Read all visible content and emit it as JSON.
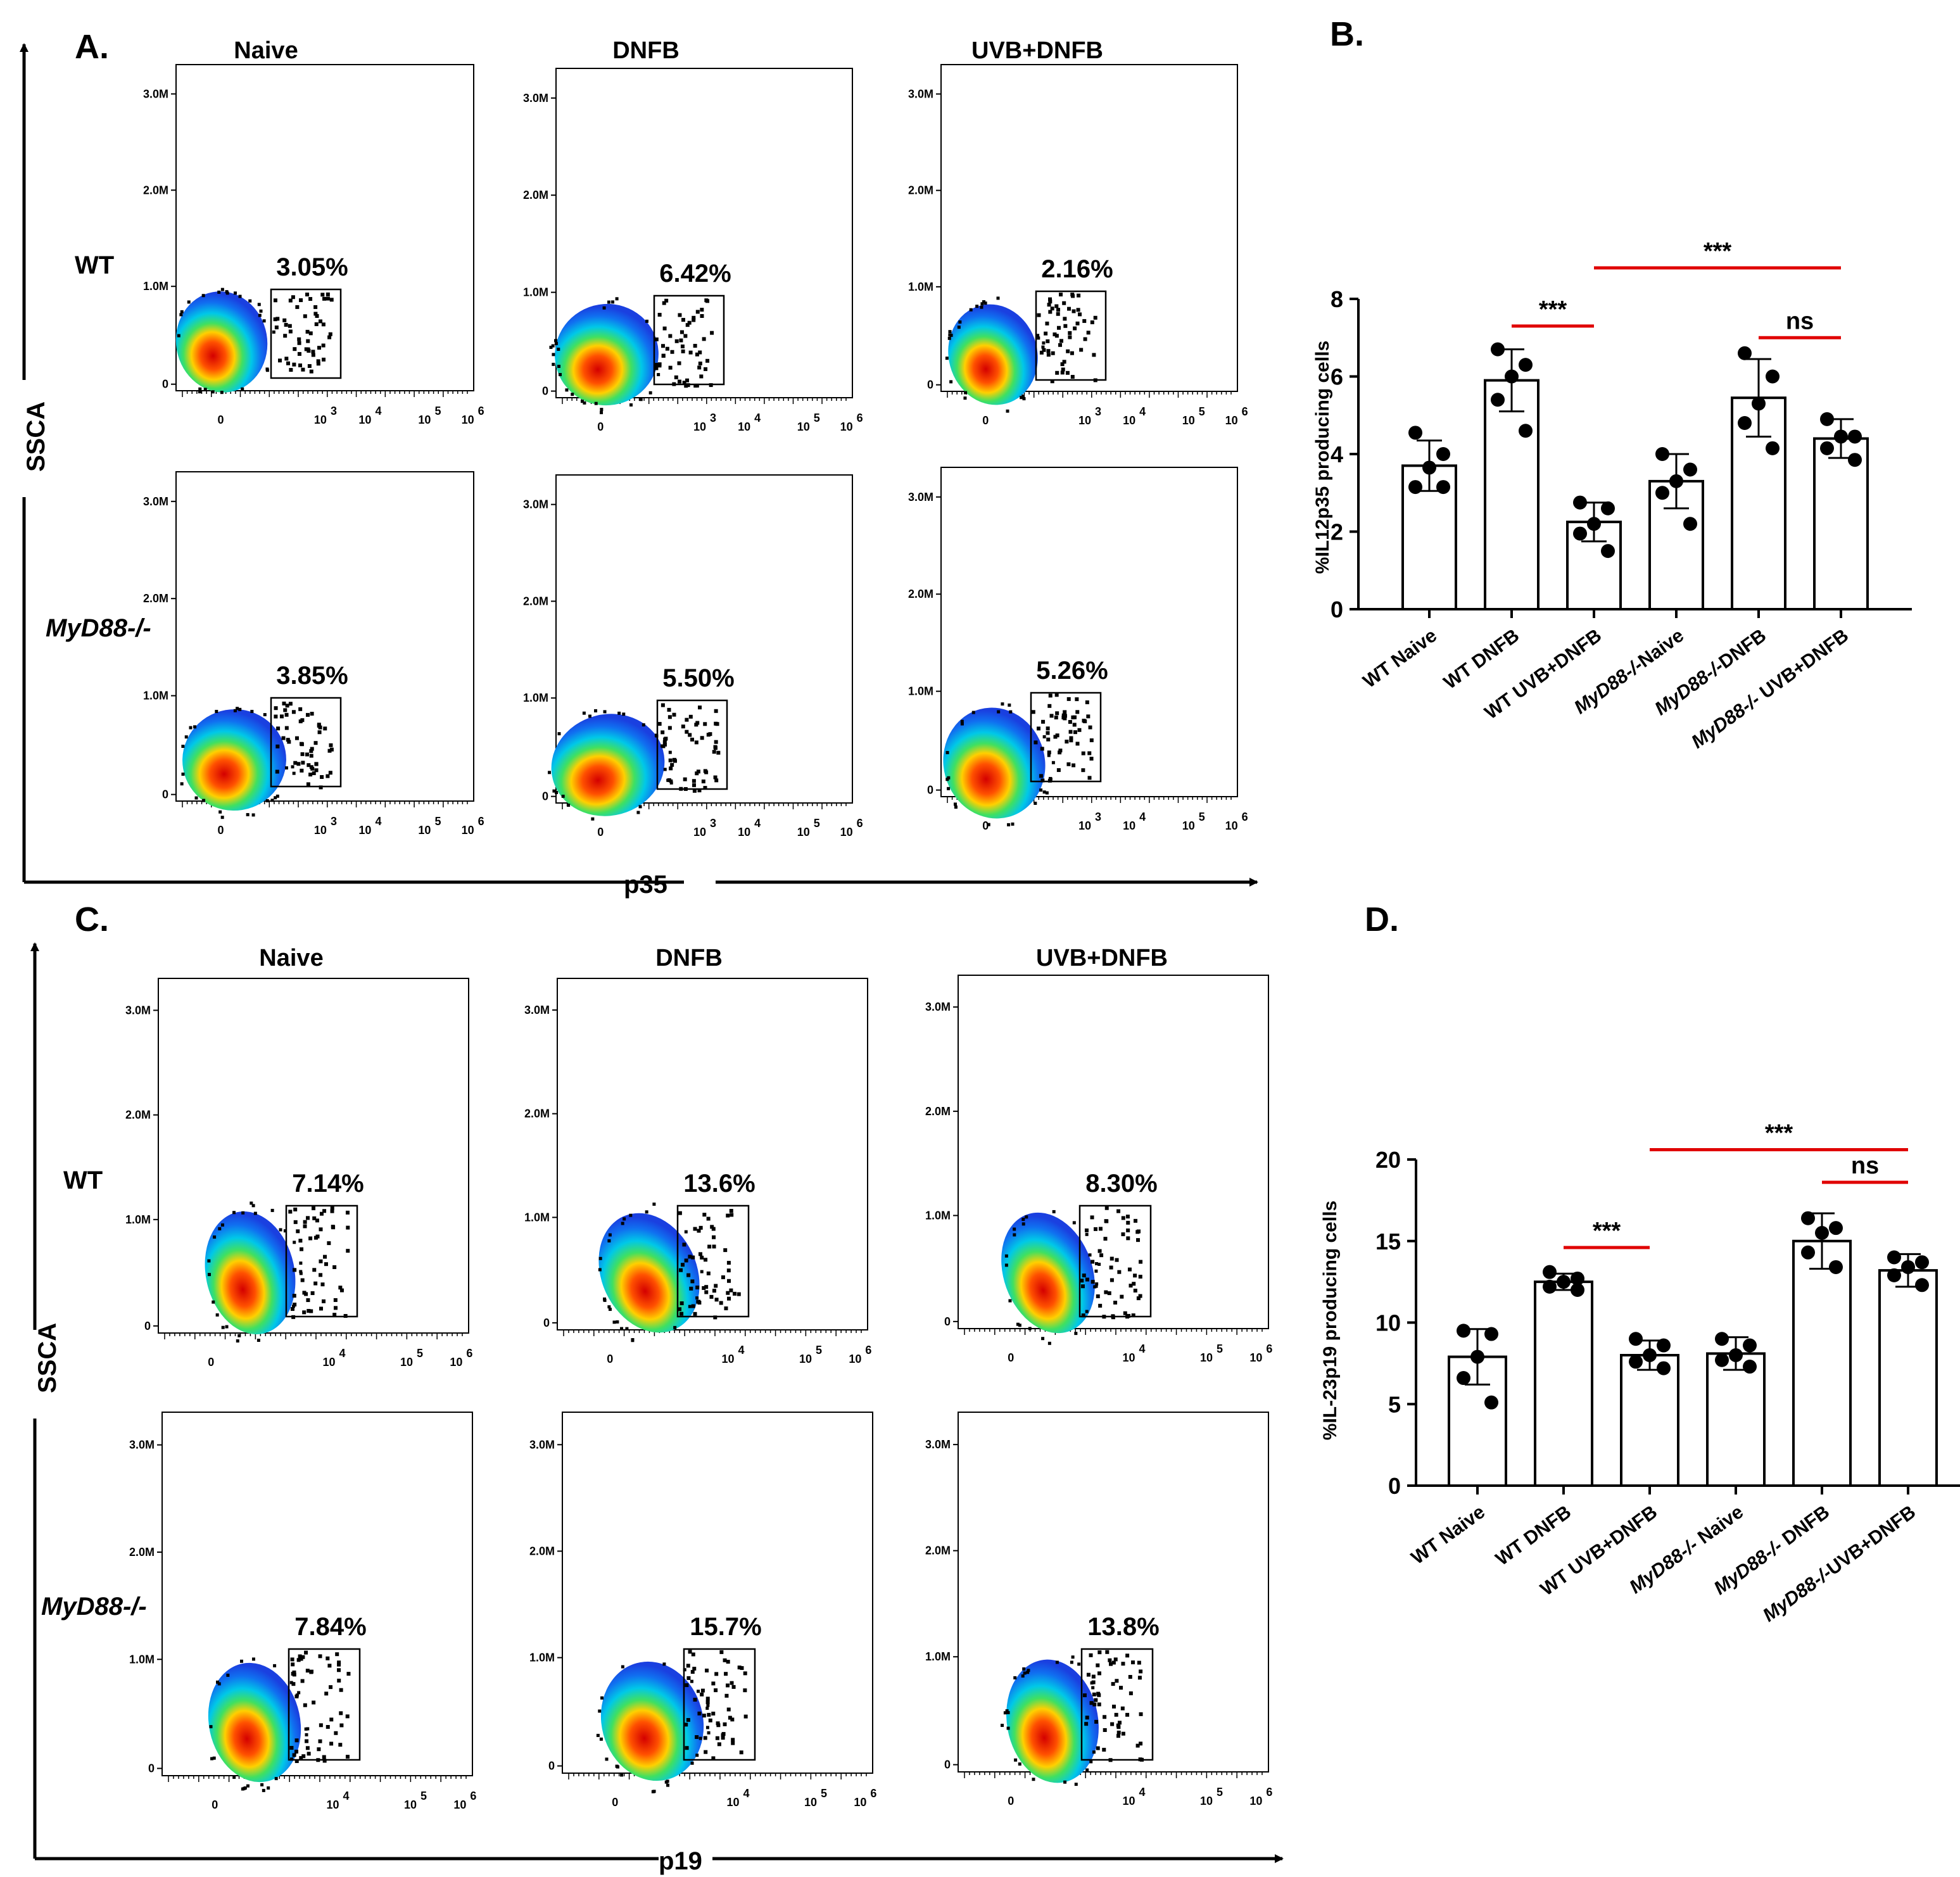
{
  "figure_panels": {
    "A": "A.",
    "B": "B.",
    "C": "C.",
    "D": "D."
  },
  "flow_panels": [
    {
      "id": "A",
      "columns": [
        "Naive",
        "DNFB",
        "UVB+DNFB"
      ],
      "rows": [
        "WT",
        "MyD88-/-"
      ],
      "y_axis_label": "SSCA",
      "x_axis_label": "p35",
      "y_ticks": [
        "3.0M",
        "2.0M",
        "1.0M",
        "0"
      ],
      "x_ticks": [
        "0",
        "10",
        "10",
        "10",
        "10"
      ],
      "x_tick_exps": [
        "",
        "3",
        "4",
        "5",
        "6"
      ],
      "percentages": [
        [
          "3.05%",
          "6.42%",
          "2.16%"
        ],
        [
          "3.85%",
          "5.50%",
          "5.26%"
        ]
      ]
    },
    {
      "id": "C",
      "columns": [
        "Naive",
        "DNFB",
        "UVB+DNFB"
      ],
      "rows": [
        "WT",
        "MyD88-/-"
      ],
      "y_axis_label": "SSCA",
      "x_axis_label": "p19",
      "y_ticks": [
        "3.0M",
        "2.0M",
        "1.0M",
        "0"
      ],
      "x_ticks": [
        "0",
        "10",
        "10",
        "10"
      ],
      "x_tick_exps": [
        "",
        "4",
        "5",
        "6"
      ],
      "percentages": [
        [
          "7.14%",
          "13.6%",
          "8.30%"
        ],
        [
          "7.84%",
          "15.7%",
          "13.8%"
        ]
      ]
    }
  ],
  "chart_data": [
    {
      "panel": "B",
      "type": "bar",
      "ylabel": "%IL12p35 producing cells",
      "ylim": [
        0,
        8
      ],
      "yticks": [
        "0",
        "2",
        "4",
        "6",
        "8"
      ],
      "categories": [
        "WT Naive",
        "WT DNFB",
        "WT UVB+DNFB",
        "MyD88-/-Naive",
        "MyD88-/-DNFB",
        "MyD88-/- UVB+DNFB"
      ],
      "values": [
        3.7,
        5.9,
        2.25,
        3.3,
        5.45,
        4.4
      ],
      "errors": [
        0.65,
        0.8,
        0.5,
        0.7,
        1.0,
        0.5
      ],
      "points": [
        [
          4.55,
          4.0,
          3.65,
          3.15,
          3.15
        ],
        [
          6.7,
          6.3,
          6.0,
          5.4,
          4.6
        ],
        [
          2.75,
          2.6,
          2.2,
          1.95,
          1.5
        ],
        [
          4.0,
          3.6,
          3.3,
          3.0,
          2.2
        ],
        [
          6.6,
          6.0,
          5.3,
          4.8,
          4.15
        ],
        [
          4.9,
          4.45,
          4.45,
          4.15,
          3.85
        ]
      ],
      "significance": [
        {
          "from": 1,
          "to": 2,
          "label": "***",
          "y": 7.3
        },
        {
          "from": 2,
          "to": 5,
          "label": "***",
          "y": 8.8
        },
        {
          "from": 4,
          "to": 5,
          "label": "ns",
          "y": 7.0
        }
      ],
      "colors": {
        "bar_edge": "#000000",
        "point": "#000000",
        "sig_line": "#e00000"
      }
    },
    {
      "panel": "D",
      "type": "bar",
      "ylabel": "%IL-23p19 producing cells",
      "ylim": [
        0,
        20
      ],
      "yticks": [
        "0",
        "5",
        "10",
        "15",
        "20"
      ],
      "categories": [
        "WT Naive",
        "WT DNFB",
        "WT UVB+DNFB",
        "MyD88-/- Naive",
        "MyD88-/- DNFB",
        "MyD88-/-UVB+DNFB"
      ],
      "values": [
        7.9,
        12.5,
        8.0,
        8.1,
        15.0,
        13.2
      ],
      "errors": [
        1.7,
        0.5,
        0.9,
        1.0,
        1.7,
        1.0
      ],
      "points": [
        [
          9.5,
          9.3,
          7.9,
          6.6,
          5.1
        ],
        [
          13.1,
          12.7,
          12.5,
          12.2,
          12.0
        ],
        [
          9.0,
          8.6,
          8.0,
          7.6,
          7.2
        ],
        [
          9.0,
          8.6,
          8.0,
          7.7,
          7.3
        ],
        [
          16.4,
          15.8,
          15.5,
          14.3,
          13.4
        ],
        [
          14.0,
          13.7,
          13.4,
          12.9,
          12.3
        ]
      ],
      "significance": [
        {
          "from": 1,
          "to": 2,
          "label": "***",
          "y": 14.6
        },
        {
          "from": 2,
          "to": 5,
          "label": "***",
          "y": 20.6
        },
        {
          "from": 4,
          "to": 5,
          "label": "ns",
          "y": 18.6
        }
      ],
      "colors": {
        "bar_edge": "#000000",
        "point": "#000000",
        "sig_line": "#e00000"
      }
    }
  ]
}
